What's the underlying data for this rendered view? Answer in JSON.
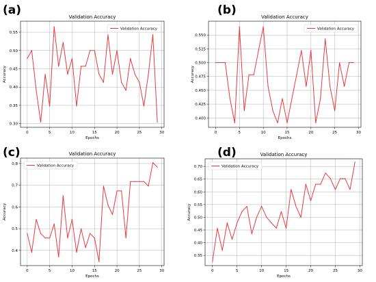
{
  "chart_data": [
    {
      "panel": "(a)",
      "type": "line",
      "title": "Validation Accuracy",
      "xlabel": "Epochs",
      "ylabel": "Accuracy",
      "xlim": [
        -1.5,
        30.5
      ],
      "ylim": [
        0.29,
        0.58
      ],
      "xticks": [
        0,
        5,
        10,
        15,
        20,
        25,
        30
      ],
      "yticks": [
        0.3,
        0.35,
        0.4,
        0.45,
        0.5,
        0.55
      ],
      "ytick_labels": [
        "0.30",
        "0.35",
        "0.40",
        "0.45",
        "0.50",
        "0.55"
      ],
      "grid": true,
      "legend": "top-right",
      "series": [
        {
          "name": "Validation Accuracy",
          "color": "#e8383d",
          "x": [
            0,
            1,
            2,
            3,
            4,
            5,
            6,
            7,
            8,
            9,
            10,
            11,
            12,
            13,
            14,
            15,
            16,
            17,
            18,
            19,
            20,
            21,
            22,
            23,
            24,
            25,
            26,
            27,
            28,
            29
          ],
          "y": [
            0.478,
            0.5,
            0.391,
            0.304,
            0.435,
            0.348,
            0.565,
            0.457,
            0.522,
            0.435,
            0.478,
            0.348,
            0.457,
            0.457,
            0.5,
            0.5,
            0.435,
            0.413,
            0.543,
            0.435,
            0.5,
            0.413,
            0.391,
            0.478,
            0.435,
            0.413,
            0.348,
            0.435,
            0.543,
            0.304
          ]
        }
      ]
    },
    {
      "panel": "(b)",
      "type": "line",
      "title": "Validation Accuracy",
      "xlabel": "Epochs",
      "ylabel": "Accuracy",
      "xlim": [
        -1.5,
        30.5
      ],
      "ylim": [
        0.383,
        0.575
      ],
      "xticks": [
        0,
        5,
        10,
        15,
        20,
        25,
        30
      ],
      "yticks": [
        0.4,
        0.425,
        0.45,
        0.475,
        0.5,
        0.525,
        0.55
      ],
      "ytick_labels": [
        "0.400",
        "0.425",
        "0.450",
        "0.475",
        "0.500",
        "0.525",
        "0.550"
      ],
      "grid": true,
      "legend": "top-right",
      "series": [
        {
          "name": "Validation Accuracy",
          "color": "#e8383d",
          "x": [
            0,
            1,
            2,
            3,
            4,
            5,
            6,
            7,
            8,
            9,
            10,
            11,
            12,
            13,
            14,
            15,
            16,
            17,
            18,
            19,
            20,
            21,
            22,
            23,
            24,
            25,
            26,
            27,
            28,
            29
          ],
          "y": [
            0.5,
            0.5,
            0.5,
            0.435,
            0.391,
            0.565,
            0.413,
            0.478,
            0.478,
            0.522,
            0.565,
            0.457,
            0.413,
            0.391,
            0.435,
            0.391,
            0.435,
            0.478,
            0.522,
            0.457,
            0.522,
            0.391,
            0.435,
            0.543,
            0.457,
            0.413,
            0.5,
            0.457,
            0.5,
            0.5
          ]
        }
      ]
    },
    {
      "panel": "(c)",
      "type": "line",
      "title": "Validation Accuracy",
      "xlabel": "Epochs",
      "ylabel": "Accuracy",
      "xlim": [
        -1.5,
        30.5
      ],
      "ylim": [
        0.33,
        0.825
      ],
      "xticks": [
        0,
        5,
        10,
        15,
        20,
        25,
        30
      ],
      "yticks": [
        0.4,
        0.5,
        0.6,
        0.7,
        0.8
      ],
      "ytick_labels": [
        "0.4",
        "0.5",
        "0.6",
        "0.7",
        "0.8"
      ],
      "grid": true,
      "legend": "top-left",
      "series": [
        {
          "name": "Validation Accuracy",
          "color": "#e8383d",
          "x": [
            0,
            1,
            2,
            3,
            4,
            5,
            6,
            7,
            8,
            9,
            10,
            11,
            12,
            13,
            14,
            15,
            16,
            17,
            18,
            19,
            20,
            21,
            22,
            23,
            24,
            25,
            26,
            27,
            28,
            29
          ],
          "y": [
            0.478,
            0.391,
            0.543,
            0.478,
            0.457,
            0.457,
            0.522,
            0.37,
            0.652,
            0.457,
            0.543,
            0.391,
            0.5,
            0.413,
            0.478,
            0.457,
            0.348,
            0.696,
            0.609,
            0.565,
            0.674,
            0.674,
            0.457,
            0.717,
            0.717,
            0.717,
            0.717,
            0.696,
            0.804,
            0.783
          ]
        }
      ]
    },
    {
      "panel": "(d)",
      "type": "line",
      "title": "Validation Accuracy",
      "xlabel": "Epochs",
      "ylabel": "Accuracy",
      "xlim": [
        -1.5,
        30.5
      ],
      "ylim": [
        0.31,
        0.73
      ],
      "xticks": [
        0,
        5,
        10,
        15,
        20,
        25,
        30
      ],
      "yticks": [
        0.35,
        0.4,
        0.45,
        0.5,
        0.55,
        0.6,
        0.65,
        0.7
      ],
      "ytick_labels": [
        "0.35",
        "0.40",
        "0.45",
        "0.50",
        "0.55",
        "0.60",
        "0.65",
        "0.70"
      ],
      "grid": true,
      "legend": "top-left",
      "series": [
        {
          "name": "Validation Accuracy",
          "color": "#e8383d",
          "x": [
            0,
            1,
            2,
            3,
            4,
            5,
            6,
            7,
            8,
            9,
            10,
            11,
            12,
            13,
            14,
            15,
            16,
            17,
            18,
            19,
            20,
            21,
            22,
            23,
            24,
            25,
            26,
            27,
            28,
            29
          ],
          "y": [
            0.326,
            0.457,
            0.37,
            0.478,
            0.413,
            0.478,
            0.522,
            0.543,
            0.435,
            0.5,
            0.543,
            0.5,
            0.478,
            0.457,
            0.522,
            0.457,
            0.609,
            0.543,
            0.5,
            0.63,
            0.565,
            0.63,
            0.63,
            0.674,
            0.652,
            0.609,
            0.652,
            0.652,
            0.609,
            0.717
          ]
        }
      ]
    }
  ]
}
